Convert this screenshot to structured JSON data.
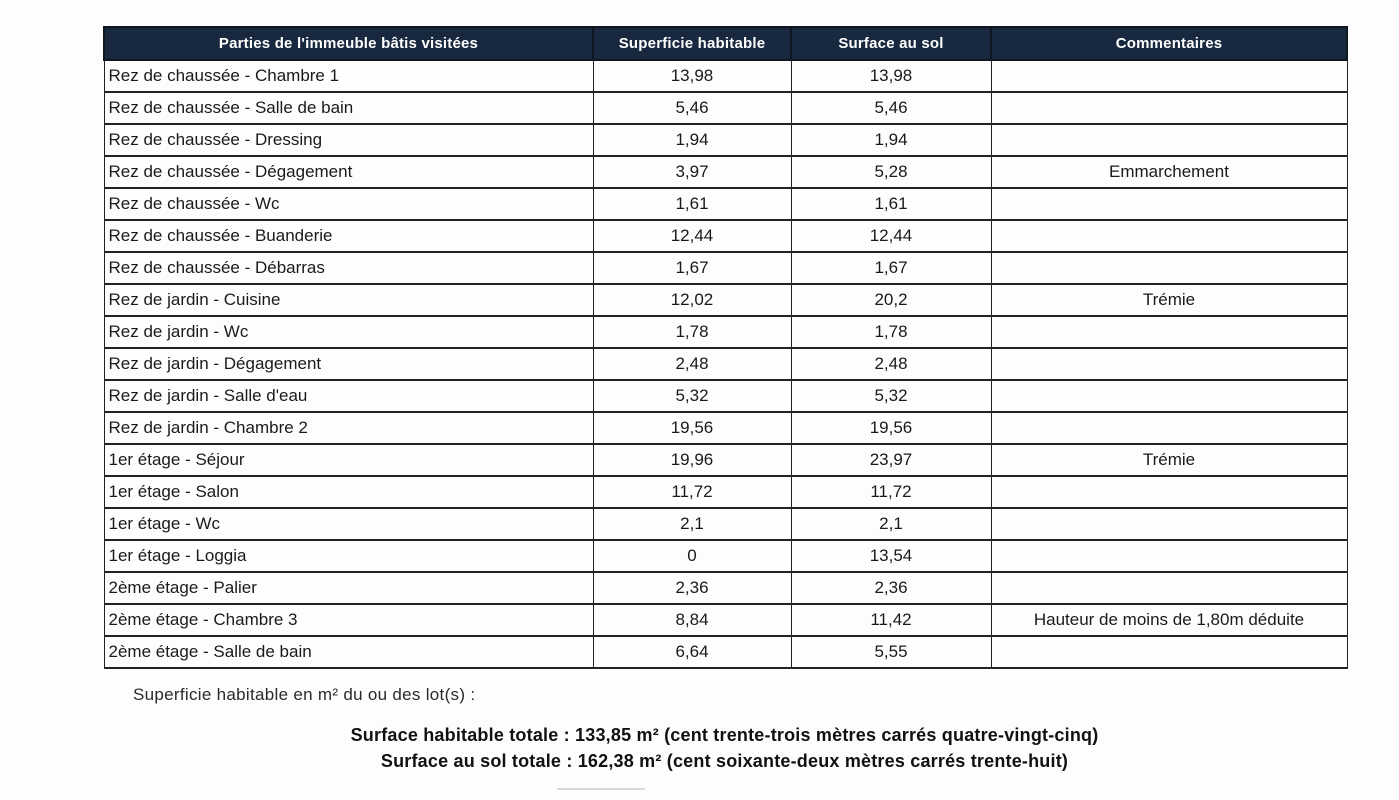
{
  "table": {
    "header_bg": "#18293f",
    "header_text_color": "#ffffff",
    "headers": [
      "Parties de l'immeuble bâtis visitées",
      "Superficie habitable",
      "Surface au sol",
      "Commentaires"
    ],
    "rows": [
      {
        "partie": "Rez de chaussée - Chambre 1",
        "superficie": "13,98",
        "surface": "13,98",
        "commentaire": ""
      },
      {
        "partie": "Rez de chaussée - Salle de bain",
        "superficie": "5,46",
        "surface": "5,46",
        "commentaire": ""
      },
      {
        "partie": "Rez de chaussée - Dressing",
        "superficie": "1,94",
        "surface": "1,94",
        "commentaire": ""
      },
      {
        "partie": "Rez de chaussée - Dégagement",
        "superficie": "3,97",
        "surface": "5,28",
        "commentaire": "Emmarchement"
      },
      {
        "partie": "Rez de chaussée - Wc",
        "superficie": "1,61",
        "surface": "1,61",
        "commentaire": ""
      },
      {
        "partie": "Rez de chaussée - Buanderie",
        "superficie": "12,44",
        "surface": "12,44",
        "commentaire": ""
      },
      {
        "partie": "Rez de chaussée - Débarras",
        "superficie": "1,67",
        "surface": "1,67",
        "commentaire": ""
      },
      {
        "partie": "Rez de jardin - Cuisine",
        "superficie": "12,02",
        "surface": "20,2",
        "commentaire": "Trémie"
      },
      {
        "partie": "Rez de jardin - Wc",
        "superficie": "1,78",
        "surface": "1,78",
        "commentaire": ""
      },
      {
        "partie": "Rez de jardin - Dégagement",
        "superficie": "2,48",
        "surface": "2,48",
        "commentaire": ""
      },
      {
        "partie": "Rez de jardin - Salle d'eau",
        "superficie": "5,32",
        "surface": "5,32",
        "commentaire": ""
      },
      {
        "partie": "Rez de jardin - Chambre 2",
        "superficie": "19,56",
        "surface": "19,56",
        "commentaire": ""
      },
      {
        "partie": "1er étage - Séjour",
        "superficie": "19,96",
        "surface": "23,97",
        "commentaire": "Trémie"
      },
      {
        "partie": "1er étage - Salon",
        "superficie": "11,72",
        "surface": "11,72",
        "commentaire": ""
      },
      {
        "partie": "1er étage - Wc",
        "superficie": "2,1",
        "surface": "2,1",
        "commentaire": ""
      },
      {
        "partie": "1er étage - Loggia",
        "superficie": "0",
        "surface": "13,54",
        "commentaire": ""
      },
      {
        "partie": "2ème étage - Palier",
        "superficie": "2,36",
        "surface": "2,36",
        "commentaire": ""
      },
      {
        "partie": "2ème étage - Chambre 3",
        "superficie": "8,84",
        "surface": "11,42",
        "commentaire": "Hauteur de moins de 1,80m déduite"
      },
      {
        "partie": "2ème étage - Salle de bain",
        "superficie": "6,64",
        "surface": "5,55",
        "commentaire": ""
      }
    ]
  },
  "footer": {
    "note": "Superficie habitable en m² du ou des lot(s) :",
    "total_habitable": "Surface habitable totale : 133,85 m² (cent trente-trois mètres carrés quatre-vingt-cinq)",
    "total_sol": "Surface au sol totale : 162,38 m² (cent soixante-deux mètres carrés trente-huit)"
  }
}
